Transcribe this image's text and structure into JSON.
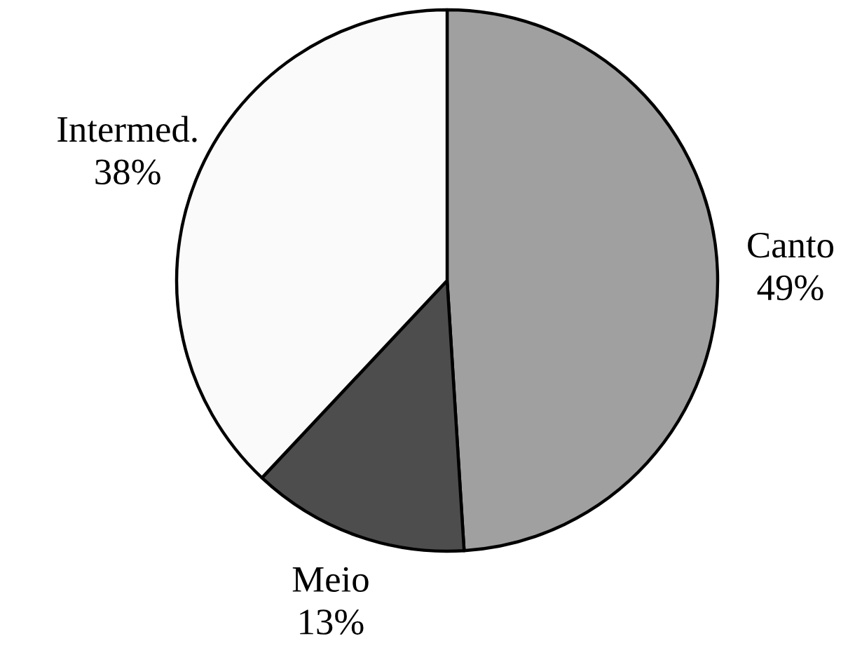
{
  "chart_data": {
    "type": "pie",
    "categories": [
      "Canto",
      "Meio",
      "Intermed."
    ],
    "values": [
      49,
      13,
      38
    ],
    "colors": [
      "#a0a0a0",
      "#4d4d4d",
      "#fafafa"
    ],
    "value_labels": [
      "49%",
      "13%",
      "38%"
    ]
  }
}
